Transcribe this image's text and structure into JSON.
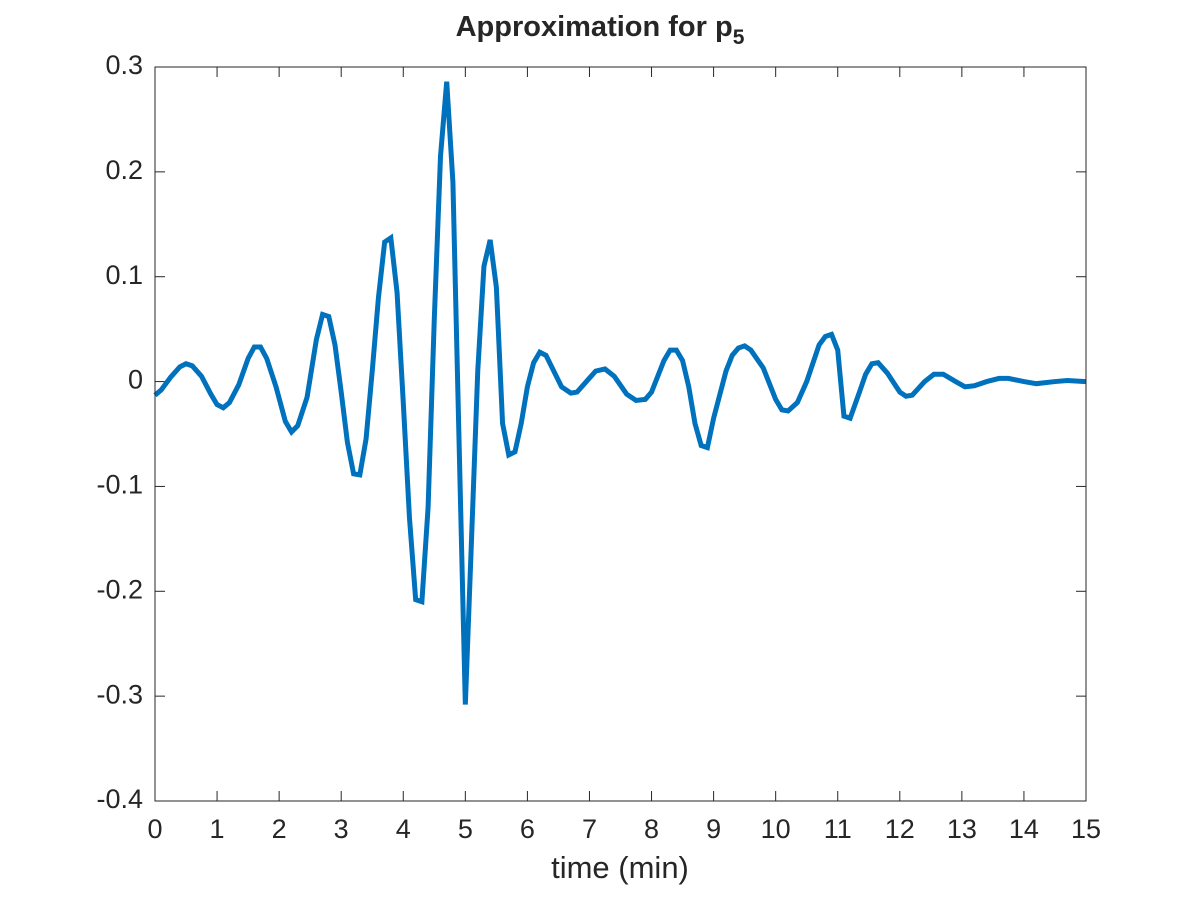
{
  "chart_data": {
    "type": "line",
    "title": "Approximation for p",
    "title_subscript": "5",
    "xlabel": "time (min)",
    "xlim": [
      0,
      15
    ],
    "xticks": [
      0,
      1,
      2,
      3,
      4,
      5,
      6,
      7,
      8,
      9,
      10,
      11,
      12,
      13,
      14,
      15
    ],
    "ylim": [
      -0.4,
      0.3
    ],
    "yticks": [
      -0.4,
      -0.3,
      -0.2,
      -0.1,
      0,
      0.1,
      0.2,
      0.3
    ],
    "grid": false,
    "x": [
      0,
      0.1,
      0.25,
      0.4,
      0.5,
      0.6,
      0.75,
      0.9,
      1.0,
      1.1,
      1.2,
      1.35,
      1.5,
      1.6,
      1.7,
      1.8,
      1.95,
      2.1,
      2.2,
      2.3,
      2.45,
      2.6,
      2.7,
      2.8,
      2.9,
      3.0,
      3.1,
      3.2,
      3.3,
      3.4,
      3.5,
      3.6,
      3.7,
      3.8,
      3.9,
      4.0,
      4.1,
      4.2,
      4.3,
      4.4,
      4.5,
      4.6,
      4.7,
      4.8,
      4.9,
      5.0,
      5.1,
      5.2,
      5.3,
      5.4,
      5.5,
      5.6,
      5.7,
      5.8,
      5.9,
      6.0,
      6.1,
      6.2,
      6.3,
      6.4,
      6.55,
      6.7,
      6.8,
      6.95,
      7.1,
      7.25,
      7.4,
      7.6,
      7.75,
      7.9,
      8.0,
      8.2,
      8.3,
      8.4,
      8.5,
      8.6,
      8.7,
      8.8,
      8.9,
      9.0,
      9.2,
      9.3,
      9.4,
      9.5,
      9.6,
      9.8,
      10.0,
      10.1,
      10.2,
      10.35,
      10.5,
      10.7,
      10.8,
      10.9,
      11.0,
      11.1,
      11.2,
      11.35,
      11.45,
      11.55,
      11.65,
      11.8,
      12.0,
      12.1,
      12.2,
      12.4,
      12.55,
      12.7,
      12.9,
      13.05,
      13.2,
      13.4,
      13.6,
      13.75,
      14.0,
      14.2,
      14.5,
      14.7,
      15
    ],
    "series": [
      {
        "name": "p5",
        "color": "#0072bd",
        "values": [
          -0.013,
          -0.008,
          0.004,
          0.014,
          0.017,
          0.015,
          0.005,
          -0.012,
          -0.022,
          -0.025,
          -0.02,
          -0.003,
          0.022,
          0.033,
          0.033,
          0.022,
          -0.005,
          -0.038,
          -0.048,
          -0.042,
          -0.015,
          0.04,
          0.064,
          0.062,
          0.035,
          -0.01,
          -0.058,
          -0.088,
          -0.089,
          -0.055,
          0.01,
          0.08,
          0.133,
          0.137,
          0.085,
          -0.02,
          -0.13,
          -0.208,
          -0.21,
          -0.12,
          0.06,
          0.215,
          0.286,
          0.19,
          -0.06,
          -0.308,
          -0.15,
          0.01,
          0.11,
          0.135,
          0.09,
          -0.04,
          -0.07,
          -0.067,
          -0.04,
          -0.005,
          0.018,
          0.028,
          0.025,
          0.013,
          -0.005,
          -0.011,
          -0.01,
          0.0,
          0.01,
          0.012,
          0.005,
          -0.012,
          -0.018,
          -0.017,
          -0.01,
          0.02,
          0.03,
          0.03,
          0.02,
          -0.005,
          -0.04,
          -0.061,
          -0.063,
          -0.035,
          0.01,
          0.025,
          0.032,
          0.034,
          0.03,
          0.013,
          -0.017,
          -0.027,
          -0.028,
          -0.02,
          0.0,
          0.035,
          0.043,
          0.045,
          0.03,
          -0.033,
          -0.035,
          -0.01,
          0.007,
          0.017,
          0.018,
          0.008,
          -0.01,
          -0.014,
          -0.013,
          0.0,
          0.007,
          0.007,
          0.0,
          -0.005,
          -0.004,
          0.0,
          0.003,
          0.003,
          0.0,
          -0.002,
          0.0,
          0.001,
          0.0
        ]
      }
    ]
  }
}
